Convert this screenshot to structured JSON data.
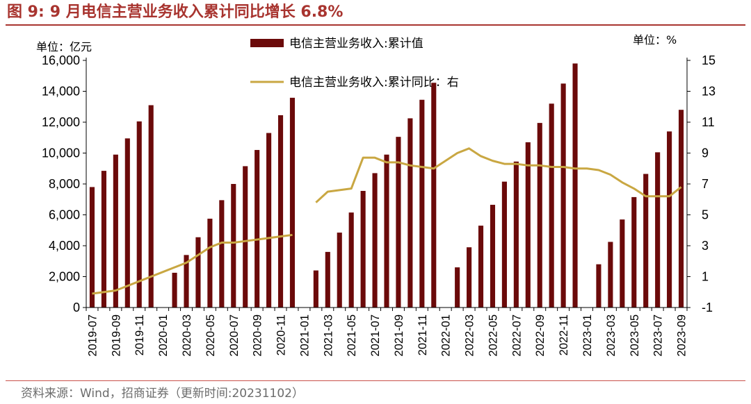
{
  "figure": {
    "label": "图 9:",
    "title": "9 月电信主营业务收入累计同比增长 6.8%",
    "source": "资料来源：Wind，招商证券（更新时间:20231102）"
  },
  "chart_data": {
    "type": "bar",
    "left_unit": "单位：亿元",
    "right_unit": "单位：%",
    "x": [
      "2019-07",
      "2019-08",
      "2019-09",
      "2019-10",
      "2019-11",
      "2019-12",
      "2020-01",
      "2020-02",
      "2020-03",
      "2020-04",
      "2020-05",
      "2020-06",
      "2020-07",
      "2020-08",
      "2020-09",
      "2020-10",
      "2020-11",
      "2020-12",
      "2021-01",
      "2021-02",
      "2021-03",
      "2021-04",
      "2021-05",
      "2021-06",
      "2021-07",
      "2021-08",
      "2021-09",
      "2021-10",
      "2021-11",
      "2021-12",
      "2022-01",
      "2022-02",
      "2022-03",
      "2022-04",
      "2022-05",
      "2022-06",
      "2022-07",
      "2022-08",
      "2022-09",
      "2022-10",
      "2022-11",
      "2022-12",
      "2023-01",
      "2023-02",
      "2023-03",
      "2023-04",
      "2023-05",
      "2023-06",
      "2023-07",
      "2023-08",
      "2023-09"
    ],
    "x_tick_labels": [
      "2019-07",
      "2019-09",
      "2019-11",
      "2020-01",
      "2020-03",
      "2020-05",
      "2020-07",
      "2020-09",
      "2020-11",
      "2021-01",
      "2021-03",
      "2021-05",
      "2021-07",
      "2021-09",
      "2021-11",
      "2022-01",
      "2022-03",
      "2022-05",
      "2022-07",
      "2022-09",
      "2022-11",
      "2023-01",
      "2023-03",
      "2023-05",
      "2023-07",
      "2023-09"
    ],
    "series": [
      {
        "name": "电信主营业务收入:累计值",
        "type": "bar",
        "axis": "left",
        "color": "#6b0a0a",
        "values": [
          7800,
          8850,
          9900,
          10950,
          12050,
          13100,
          null,
          2250,
          3400,
          4550,
          5750,
          6950,
          8000,
          9150,
          10200,
          11300,
          12450,
          13580,
          null,
          2400,
          3600,
          4850,
          6150,
          7550,
          8700,
          9900,
          11050,
          12250,
          13450,
          14550,
          null,
          2600,
          3900,
          5300,
          6650,
          8150,
          9450,
          10700,
          11950,
          13200,
          14500,
          15800,
          null,
          2800,
          4250,
          5700,
          7150,
          8650,
          10050,
          11400,
          12800
        ]
      },
      {
        "name": "电信主营业务收入:累计同比：右",
        "type": "line",
        "axis": "right",
        "color": "#c9a742",
        "values": [
          -0.1,
          0.0,
          0.1,
          0.4,
          0.7,
          1.0,
          1.3,
          1.6,
          1.9,
          2.4,
          2.9,
          3.2,
          3.2,
          3.3,
          3.4,
          3.5,
          3.6,
          3.7,
          null,
          5.8,
          6.5,
          6.6,
          6.7,
          8.7,
          8.7,
          8.4,
          8.4,
          8.2,
          8.1,
          8.0,
          8.5,
          9.0,
          9.3,
          8.8,
          8.5,
          8.3,
          8.3,
          8.2,
          8.2,
          8.1,
          8.1,
          8.0,
          8.0,
          7.9,
          7.6,
          7.1,
          6.7,
          6.2,
          6.2,
          6.2,
          6.8
        ]
      }
    ],
    "left_axis": {
      "min": 0,
      "max": 16000,
      "ticks": [
        0,
        2000,
        4000,
        6000,
        8000,
        10000,
        12000,
        14000,
        16000
      ],
      "tick_labels": [
        "0",
        "2,000",
        "4,000",
        "6,000",
        "8,000",
        "10,000",
        "12,000",
        "14,000",
        "16,000"
      ]
    },
    "right_axis": {
      "min": -1,
      "max": 15,
      "ticks": [
        -1,
        1,
        3,
        5,
        7,
        9,
        11,
        13,
        15
      ],
      "tick_labels": [
        "-1",
        "1",
        "3",
        "5",
        "7",
        "9",
        "11",
        "13",
        "15"
      ]
    },
    "grid": false,
    "legend_position": "top-center"
  }
}
